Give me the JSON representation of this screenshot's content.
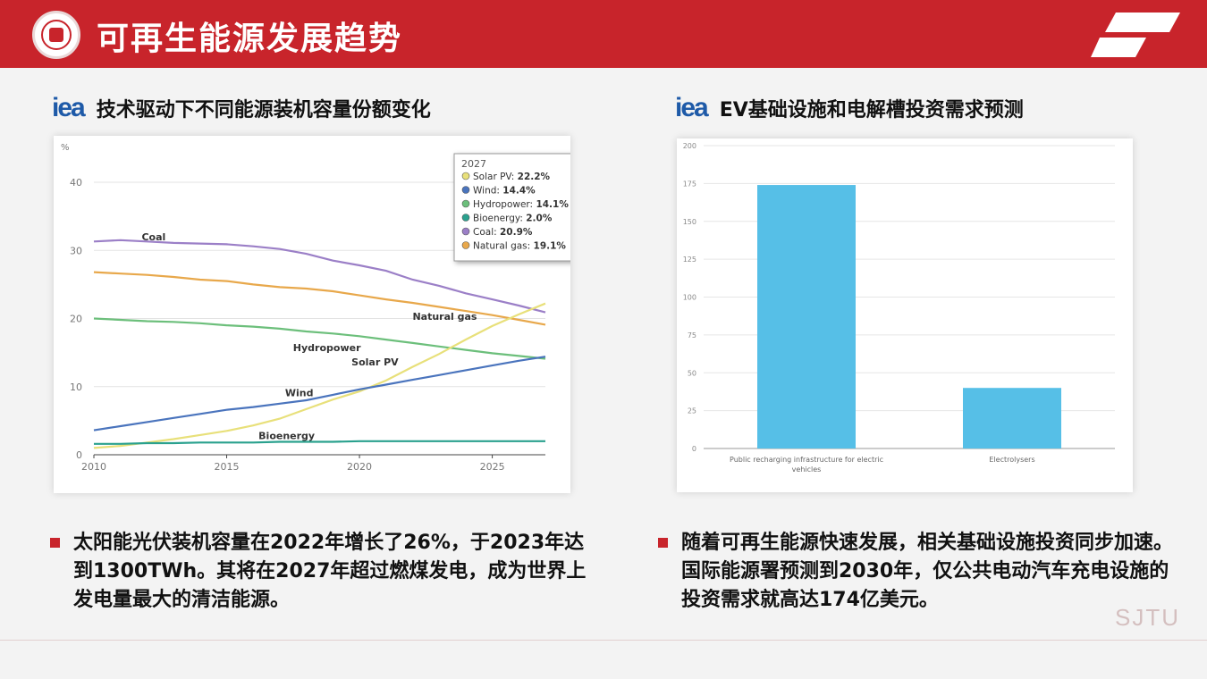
{
  "slide": {
    "title": "可再生能源发展趋势",
    "watermark": "SJTU"
  },
  "left": {
    "logo_text": "iea",
    "heading": "技术驱动下不同能源装机容量份额变化",
    "bullet": "太阳能光伏装机容量在2022年增长了26%，于2023年达到1300TWh。其将在2027年超过燃煤发电，成为世界上发电量最大的清洁能源。"
  },
  "right": {
    "logo_text": "iea",
    "heading": "EV基础设施和电解槽投资需求预测",
    "bullet": "随着可再生能源快速发展，相关基础设施投资同步加速。国际能源署预测到2030年，仅公共电动汽车充电设施的投资需求就高达174亿美元。"
  },
  "chart_data": [
    {
      "type": "line",
      "ylabel": "%",
      "ylim": [
        0,
        40
      ],
      "yticks": [
        0,
        10,
        20,
        30,
        40
      ],
      "xlim": [
        2010,
        2027
      ],
      "xticks": [
        2010,
        2015,
        2020,
        2025
      ],
      "grid": true,
      "series": [
        {
          "name": "Coal",
          "color": "#9b7fc7",
          "x": [
            2010,
            2011,
            2012,
            2013,
            2014,
            2015,
            2016,
            2017,
            2018,
            2019,
            2020,
            2021,
            2022,
            2023,
            2024,
            2025,
            2026,
            2027
          ],
          "values": [
            31.3,
            31.5,
            31.3,
            31.1,
            31.0,
            30.9,
            30.6,
            30.2,
            29.5,
            28.5,
            27.8,
            27.0,
            25.7,
            24.8,
            23.7,
            22.8,
            21.9,
            20.9
          ]
        },
        {
          "name": "Natural gas",
          "color": "#e8a84b",
          "x": [
            2010,
            2011,
            2012,
            2013,
            2014,
            2015,
            2016,
            2017,
            2018,
            2019,
            2020,
            2021,
            2022,
            2023,
            2024,
            2025,
            2026,
            2027
          ],
          "values": [
            26.8,
            26.6,
            26.4,
            26.1,
            25.7,
            25.5,
            25.0,
            24.6,
            24.4,
            24.0,
            23.4,
            22.8,
            22.3,
            21.7,
            21.1,
            20.5,
            19.8,
            19.1
          ]
        },
        {
          "name": "Hydropower",
          "color": "#6cbf7b",
          "x": [
            2010,
            2011,
            2012,
            2013,
            2014,
            2015,
            2016,
            2017,
            2018,
            2019,
            2020,
            2021,
            2022,
            2023,
            2024,
            2025,
            2026,
            2027
          ],
          "values": [
            20.0,
            19.8,
            19.6,
            19.5,
            19.3,
            19.0,
            18.8,
            18.5,
            18.1,
            17.8,
            17.4,
            16.9,
            16.4,
            15.9,
            15.4,
            14.9,
            14.5,
            14.1
          ]
        },
        {
          "name": "Solar PV",
          "color": "#e8e07a",
          "x": [
            2010,
            2011,
            2012,
            2013,
            2014,
            2015,
            2016,
            2017,
            2018,
            2019,
            2020,
            2021,
            2022,
            2023,
            2024,
            2025,
            2026,
            2027
          ],
          "values": [
            1.0,
            1.3,
            1.8,
            2.3,
            2.9,
            3.5,
            4.3,
            5.3,
            6.7,
            8.1,
            9.3,
            10.9,
            12.9,
            14.8,
            16.9,
            18.9,
            20.6,
            22.2
          ]
        },
        {
          "name": "Wind",
          "color": "#4a74bd",
          "x": [
            2010,
            2011,
            2012,
            2013,
            2014,
            2015,
            2016,
            2017,
            2018,
            2019,
            2020,
            2021,
            2022,
            2023,
            2024,
            2025,
            2026,
            2027
          ],
          "values": [
            3.6,
            4.2,
            4.8,
            5.4,
            6.0,
            6.6,
            7.0,
            7.5,
            8.0,
            8.8,
            9.6,
            10.3,
            11.0,
            11.7,
            12.4,
            13.1,
            13.8,
            14.4
          ]
        },
        {
          "name": "Bioenergy",
          "color": "#2aa18e",
          "x": [
            2010,
            2011,
            2012,
            2013,
            2014,
            2015,
            2016,
            2017,
            2018,
            2019,
            2020,
            2021,
            2022,
            2023,
            2024,
            2025,
            2026,
            2027
          ],
          "values": [
            1.6,
            1.6,
            1.7,
            1.7,
            1.8,
            1.8,
            1.8,
            1.9,
            1.9,
            1.9,
            2.0,
            2.0,
            2.0,
            2.0,
            2.0,
            2.0,
            2.0,
            2.0
          ]
        }
      ],
      "tooltip": {
        "title": "2027",
        "items": [
          {
            "label": "Solar PV:",
            "value": "22.2%",
            "color": "#e8e07a"
          },
          {
            "label": "Wind:",
            "value": "14.4%",
            "color": "#4a74bd"
          },
          {
            "label": "Hydropower:",
            "value": "14.1%",
            "color": "#6cbf7b"
          },
          {
            "label": "Bioenergy:",
            "value": "2.0%",
            "color": "#2aa18e"
          },
          {
            "label": "Coal:",
            "value": "20.9%",
            "color": "#9b7fc7"
          },
          {
            "label": "Natural gas:",
            "value": "19.1%",
            "color": "#e8a84b"
          }
        ]
      }
    },
    {
      "type": "bar",
      "categories": [
        "Public recharging infrastructure for electric vehicles",
        "Electrolysers"
      ],
      "category_lines": [
        [
          "Public recharging infrastructure for electric",
          "vehicles"
        ],
        [
          "Electrolysers"
        ]
      ],
      "values": [
        174,
        40
      ],
      "ylim": [
        0,
        200
      ],
      "yticks": [
        0,
        25,
        50,
        75,
        100,
        125,
        150,
        175,
        200
      ],
      "bar_color": "#56bfe7",
      "grid": true
    }
  ]
}
